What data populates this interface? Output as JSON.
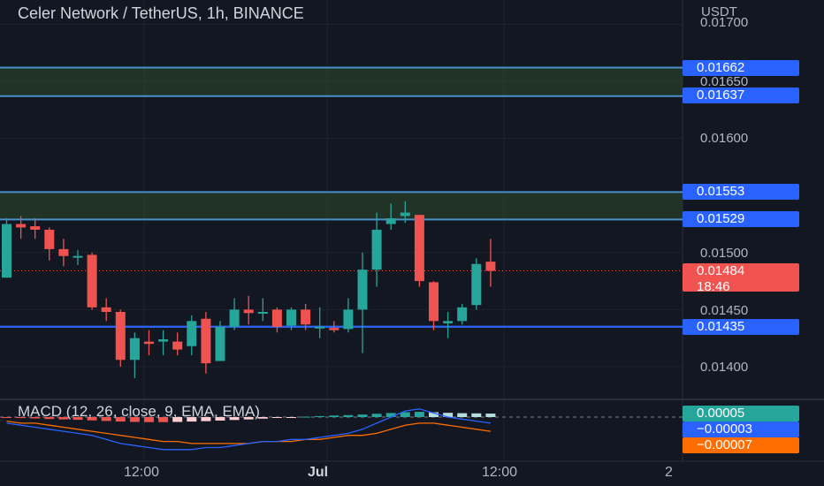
{
  "title": "Celer Network / TetherUS, 1h, BINANCE",
  "currency": "USDT",
  "price_axis": [
    "0.01700",
    "0.01650",
    "0.01600",
    "0.01500",
    "0.01450",
    "0.01400"
  ],
  "tags": [
    {
      "value": "0.01662",
      "color": "#2962ff"
    },
    {
      "value": "0.01637",
      "color": "#2962ff"
    },
    {
      "value": "0.01553",
      "color": "#2962ff"
    },
    {
      "value": "0.01529",
      "color": "#2962ff"
    },
    {
      "value": "0.01484",
      "color": "#f05350"
    },
    {
      "value": "0.01435",
      "color": "#2962ff"
    }
  ],
  "countdown": "18:46",
  "time_axis": [
    "12:00",
    "Jul",
    "12:00",
    "2"
  ],
  "macd": {
    "title": "MACD (12, 26, close, 9, EMA, EMA)",
    "histogram_value": "0.00005",
    "macd_value": "−0.00003",
    "signal_value": "−0.00007",
    "colors": {
      "histogram": "#26a69a",
      "macd": "#2962ff",
      "signal": "#ff6d00"
    }
  },
  "chart_data": {
    "type": "candlestick",
    "ylim": [
      0.0138,
      0.0172
    ],
    "levels": [
      0.01662,
      0.01637,
      0.01553,
      0.01529,
      0.01435
    ],
    "zones": [
      [
        0.01637,
        0.01662
      ],
      [
        0.01529,
        0.01553
      ]
    ],
    "last_price": 0.01484,
    "candles": [
      {
        "o": 0.01478,
        "h": 0.0153,
        "l": 0.01478,
        "c": 0.01525
      },
      {
        "o": 0.01525,
        "h": 0.01532,
        "l": 0.01512,
        "c": 0.01522
      },
      {
        "o": 0.01523,
        "h": 0.0153,
        "l": 0.01512,
        "c": 0.0152
      },
      {
        "o": 0.0152,
        "h": 0.01522,
        "l": 0.01493,
        "c": 0.01503
      },
      {
        "o": 0.01503,
        "h": 0.01512,
        "l": 0.01488,
        "c": 0.01497
      },
      {
        "o": 0.01497,
        "h": 0.01502,
        "l": 0.01489,
        "c": 0.01497
      },
      {
        "o": 0.01498,
        "h": 0.015,
        "l": 0.0145,
        "c": 0.01452
      },
      {
        "o": 0.01452,
        "h": 0.0146,
        "l": 0.0144,
        "c": 0.01448
      },
      {
        "o": 0.01448,
        "h": 0.0145,
        "l": 0.014,
        "c": 0.01406
      },
      {
        "o": 0.01406,
        "h": 0.0143,
        "l": 0.0139,
        "c": 0.01425
      },
      {
        "o": 0.01422,
        "h": 0.01432,
        "l": 0.0141,
        "c": 0.0142
      },
      {
        "o": 0.01422,
        "h": 0.01432,
        "l": 0.0141,
        "c": 0.01424
      },
      {
        "o": 0.01422,
        "h": 0.0143,
        "l": 0.0141,
        "c": 0.01415
      },
      {
        "o": 0.01418,
        "h": 0.01445,
        "l": 0.0141,
        "c": 0.0144
      },
      {
        "o": 0.01442,
        "h": 0.01448,
        "l": 0.01394,
        "c": 0.01403
      },
      {
        "o": 0.01405,
        "h": 0.0144,
        "l": 0.01405,
        "c": 0.01435
      },
      {
        "o": 0.01435,
        "h": 0.0146,
        "l": 0.01432,
        "c": 0.0145
      },
      {
        "o": 0.0145,
        "h": 0.01462,
        "l": 0.01437,
        "c": 0.01447
      },
      {
        "o": 0.01447,
        "h": 0.0146,
        "l": 0.0144,
        "c": 0.01448
      },
      {
        "o": 0.0145,
        "h": 0.01452,
        "l": 0.0143,
        "c": 0.01435
      },
      {
        "o": 0.01436,
        "h": 0.01452,
        "l": 0.01432,
        "c": 0.0145
      },
      {
        "o": 0.0145,
        "h": 0.01455,
        "l": 0.01432,
        "c": 0.01437
      },
      {
        "o": 0.01435,
        "h": 0.01452,
        "l": 0.01425,
        "c": 0.01435
      },
      {
        "o": 0.01434,
        "h": 0.0144,
        "l": 0.0143,
        "c": 0.01432
      },
      {
        "o": 0.01433,
        "h": 0.0146,
        "l": 0.0143,
        "c": 0.0145
      },
      {
        "o": 0.0145,
        "h": 0.015,
        "l": 0.01412,
        "c": 0.01485
      },
      {
        "o": 0.01485,
        "h": 0.01535,
        "l": 0.0147,
        "c": 0.0152
      },
      {
        "o": 0.01525,
        "h": 0.01543,
        "l": 0.0152,
        "c": 0.0153
      },
      {
        "o": 0.01532,
        "h": 0.01545,
        "l": 0.01526,
        "c": 0.01535
      },
      {
        "o": 0.01533,
        "h": 0.01532,
        "l": 0.0147,
        "c": 0.01475
      },
      {
        "o": 0.01474,
        "h": 0.01475,
        "l": 0.01432,
        "c": 0.0144
      },
      {
        "o": 0.01438,
        "h": 0.01448,
        "l": 0.01425,
        "c": 0.0144
      },
      {
        "o": 0.0144,
        "h": 0.01455,
        "l": 0.01437,
        "c": 0.01452
      },
      {
        "o": 0.01454,
        "h": 0.01495,
        "l": 0.0145,
        "c": 0.0149
      },
      {
        "o": 0.01492,
        "h": 0.01512,
        "l": 0.0147,
        "c": 0.01484
      }
    ],
    "macd_hist": [
      -0.2,
      -0.5,
      -0.7,
      -1.0,
      -1.2,
      -1.4,
      -1.7,
      -2.0,
      -2.3,
      -2.5,
      -2.6,
      -2.6,
      -2.5,
      -2.3,
      -2.1,
      -1.8,
      -1.5,
      -1.2,
      -0.8,
      -0.4,
      -0.1,
      0.2,
      0.5,
      0.8,
      1.0,
      1.3,
      1.7,
      2.1,
      2.5,
      2.7,
      2.5,
      2.2,
      2.0,
      1.9,
      1.8
    ],
    "macd_line": [
      -3,
      -4,
      -5,
      -6,
      -7,
      -8,
      -9,
      -11,
      -13,
      -14,
      -15,
      -16,
      -16,
      -16,
      -15,
      -15,
      -14,
      -13,
      -12,
      -12,
      -11,
      -11,
      -10,
      -9,
      -8,
      -6,
      -3,
      0,
      3,
      4,
      2,
      0,
      -1,
      -2,
      -3
    ],
    "signal_line": [
      -2,
      -3,
      -3,
      -4,
      -5,
      -6,
      -7,
      -8,
      -9,
      -10,
      -11,
      -12,
      -12,
      -13,
      -13,
      -13,
      -13,
      -13,
      -12,
      -12,
      -12,
      -11,
      -11,
      -10,
      -9,
      -9,
      -8,
      -6,
      -4,
      -3,
      -3,
      -4,
      -5,
      -6,
      -7
    ]
  }
}
